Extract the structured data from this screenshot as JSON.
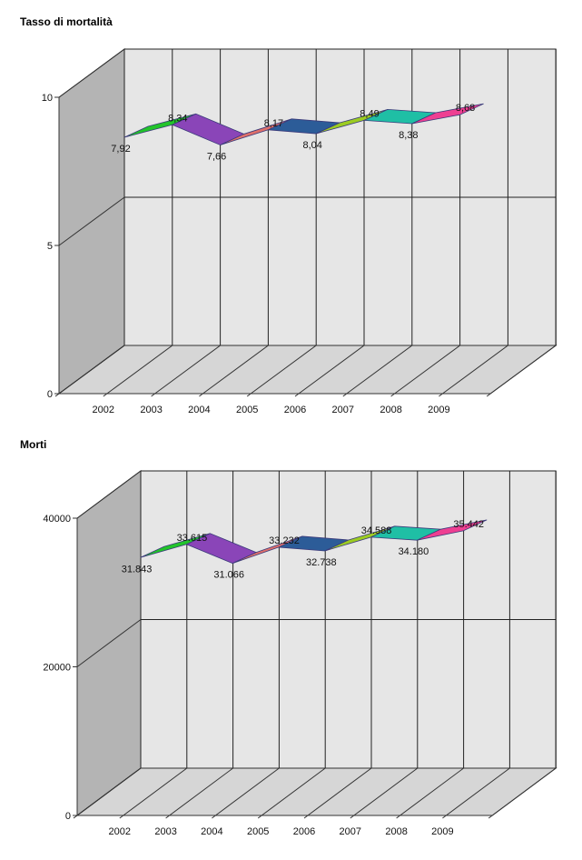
{
  "chart_data": [
    {
      "type": "area",
      "title": "Tasso di mortalità",
      "categories": [
        "2002",
        "2003",
        "2004",
        "2005",
        "2006",
        "2007",
        "2008",
        "2009"
      ],
      "values": [
        7.92,
        8.34,
        7.66,
        8.17,
        8.04,
        8.49,
        8.38,
        8.68
      ],
      "labels": [
        "7,92",
        "8,34",
        "7,66",
        "8,17",
        "8,04",
        "8,49",
        "8,38",
        "8,68"
      ],
      "yticks": [
        "0",
        "5",
        "10"
      ],
      "ytick_values": [
        0,
        5,
        10
      ],
      "ylim": [
        0,
        10
      ],
      "grid": true
    },
    {
      "type": "area",
      "title": "Morti",
      "categories": [
        "2002",
        "2003",
        "2004",
        "2005",
        "2006",
        "2007",
        "2008",
        "2009"
      ],
      "values": [
        31843,
        33615,
        31066,
        33232,
        32738,
        34588,
        34180,
        35442
      ],
      "labels": [
        "31.843",
        "33.615",
        "31.066",
        "33.232",
        "32.738",
        "34.588",
        "34.180",
        "35.442"
      ],
      "yticks": [
        "0",
        "20000",
        "40000"
      ],
      "ytick_values": [
        0,
        20000,
        40000
      ],
      "ylim": [
        0,
        40000
      ],
      "grid": true
    }
  ],
  "segment_colors": [
    "#22c42a",
    "#8a45b8",
    "#e0706a",
    "#2c5c98",
    "#9ccc22",
    "#1fbfa5",
    "#ee3f92"
  ]
}
